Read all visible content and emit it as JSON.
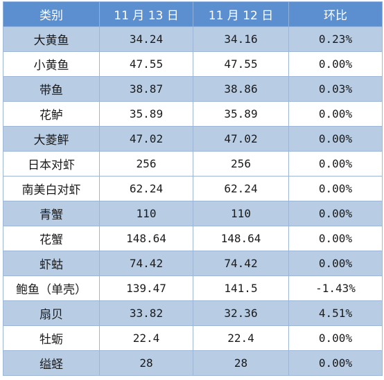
{
  "table": {
    "headers": [
      "类别",
      "11 月 13 日",
      "11 月 12 日",
      "环比"
    ],
    "rows": [
      {
        "category": "大黄鱼",
        "nov13": "34.24",
        "nov12": "34.16",
        "change": "0.23%"
      },
      {
        "category": "小黄鱼",
        "nov13": "47.55",
        "nov12": "47.55",
        "change": "0.00%"
      },
      {
        "category": "带鱼",
        "nov13": "38.87",
        "nov12": "38.86",
        "change": "0.03%"
      },
      {
        "category": "花鲈",
        "nov13": "35.89",
        "nov12": "35.89",
        "change": "0.00%"
      },
      {
        "category": "大菱鲆",
        "nov13": "47.02",
        "nov12": "47.02",
        "change": "0.00%"
      },
      {
        "category": "日本对虾",
        "nov13": "256",
        "nov12": "256",
        "change": "0.00%"
      },
      {
        "category": "南美白对虾",
        "nov13": "62.24",
        "nov12": "62.24",
        "change": "0.00%"
      },
      {
        "category": "青蟹",
        "nov13": "110",
        "nov12": "110",
        "change": "0.00%"
      },
      {
        "category": "花蟹",
        "nov13": "148.64",
        "nov12": "148.64",
        "change": "0.00%"
      },
      {
        "category": "虾蛄",
        "nov13": "74.42",
        "nov12": "74.42",
        "change": "0.00%"
      },
      {
        "category": "鲍鱼（单壳）",
        "nov13": "139.47",
        "nov12": "141.5",
        "change": "-1.43%"
      },
      {
        "category": "扇贝",
        "nov13": "33.82",
        "nov12": "32.36",
        "change": "4.51%"
      },
      {
        "category": "牡蛎",
        "nov13": "22.4",
        "nov12": "22.4",
        "change": "0.00%"
      },
      {
        "category": "缢蛏",
        "nov13": "28",
        "nov12": "28",
        "change": "0.00%"
      }
    ]
  },
  "colors": {
    "header_bg": "#5b8fd0",
    "band_bg": "#b8cce4",
    "plain_bg": "#ffffff",
    "border": "#9eb6d6"
  }
}
